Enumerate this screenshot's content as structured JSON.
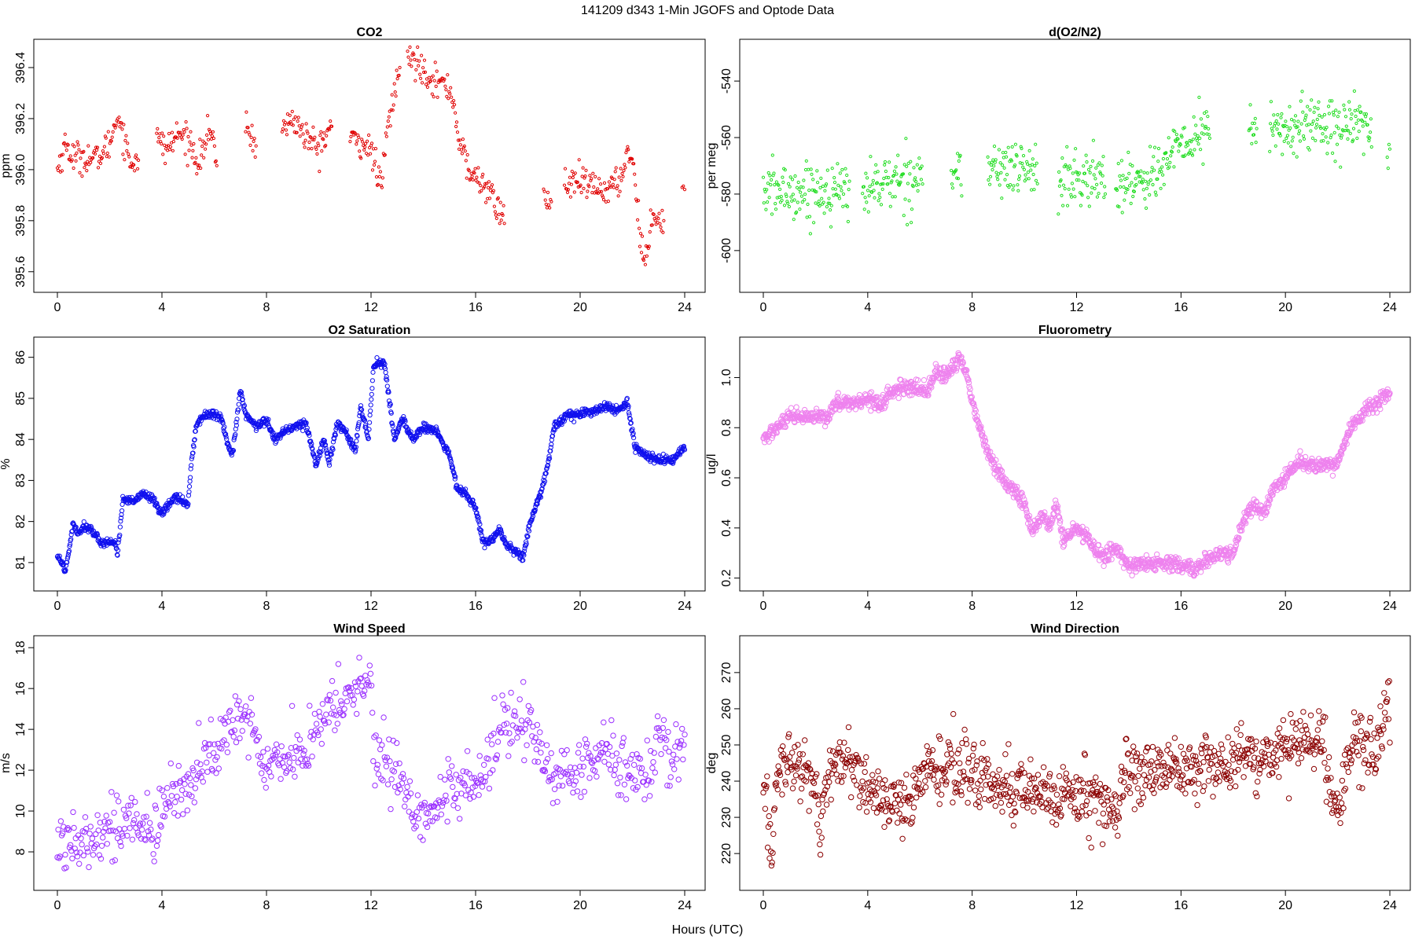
{
  "figure_title": "141209   d343   1-Min  JGOFS and Optode Data",
  "shared_xlabel": "Hours (UTC)",
  "chart_data": [
    {
      "type": "scatter",
      "title": "CO2",
      "ylabel": "ppm",
      "xlabel": "",
      "xlim": [
        0,
        24
      ],
      "ylim": [
        395.55,
        396.48
      ],
      "xticks": [
        0,
        4,
        8,
        12,
        16,
        20,
        24
      ],
      "yticks": [
        395.6,
        395.8,
        396.0,
        396.2,
        396.4
      ],
      "ytick_labels": [
        "395.6",
        "395.8",
        "396.0",
        "396.2",
        "396.4"
      ],
      "color": "#e00000",
      "marker_radius": 1.6,
      "noise": 0.006,
      "segments": [
        [
          0,
          3.1
        ],
        [
          3.8,
          6.1
        ],
        [
          7.2,
          7.6
        ],
        [
          8.6,
          10.5
        ],
        [
          11.2,
          13.1
        ],
        [
          13.4,
          17.1
        ],
        [
          18.6,
          18.9
        ],
        [
          19.4,
          23.2
        ],
        [
          23.9,
          24
        ]
      ],
      "profile": [
        [
          0,
          396.0
        ],
        [
          0.3,
          396.1
        ],
        [
          0.6,
          396.05
        ],
        [
          1.0,
          396.05
        ],
        [
          1.5,
          396.04
        ],
        [
          2.0,
          396.1
        ],
        [
          2.3,
          396.22
        ],
        [
          2.5,
          396.15
        ],
        [
          2.8,
          396.02
        ],
        [
          3.1,
          396.06
        ],
        [
          3.8,
          396.12
        ],
        [
          4.2,
          396.08
        ],
        [
          4.6,
          396.14
        ],
        [
          5.0,
          396.12
        ],
        [
          5.4,
          396.03
        ],
        [
          5.8,
          396.15
        ],
        [
          6.1,
          396.05
        ],
        [
          7.2,
          396.17
        ],
        [
          7.6,
          396.1
        ],
        [
          8.6,
          396.15
        ],
        [
          9.0,
          396.2
        ],
        [
          9.5,
          396.13
        ],
        [
          10.0,
          396.08
        ],
        [
          10.5,
          396.18
        ],
        [
          11.2,
          396.12
        ],
        [
          11.8,
          396.1
        ],
        [
          12.1,
          396.05
        ],
        [
          12.4,
          395.92
        ],
        [
          12.6,
          396.15
        ],
        [
          13.1,
          396.4
        ],
        [
          13.4,
          396.44
        ],
        [
          13.8,
          396.42
        ],
        [
          14.3,
          396.36
        ],
        [
          14.8,
          396.33
        ],
        [
          15.1,
          396.3
        ],
        [
          15.4,
          396.1
        ],
        [
          15.8,
          395.98
        ],
        [
          16.4,
          395.94
        ],
        [
          16.8,
          395.85
        ],
        [
          17.1,
          395.82
        ],
        [
          18.6,
          395.89
        ],
        [
          18.9,
          395.87
        ],
        [
          19.4,
          395.94
        ],
        [
          20.0,
          395.95
        ],
        [
          20.5,
          395.93
        ],
        [
          21.0,
          395.92
        ],
        [
          21.5,
          395.95
        ],
        [
          21.8,
          396.07
        ],
        [
          22.0,
          396.05
        ],
        [
          22.3,
          395.75
        ],
        [
          22.5,
          395.62
        ],
        [
          22.8,
          395.85
        ],
        [
          23.2,
          395.78
        ],
        [
          23.9,
          395.94
        ],
        [
          24,
          395.94
        ]
      ],
      "spread": 0.03,
      "n": 600
    },
    {
      "type": "scatter",
      "title": "d(O2/N2)",
      "ylabel": "per meg",
      "xlabel": "",
      "xlim": [
        0,
        24
      ],
      "ylim": [
        -612,
        -528
      ],
      "xticks": [
        0,
        4,
        8,
        12,
        16,
        20,
        24
      ],
      "yticks": [
        -600,
        -580,
        -560,
        -540
      ],
      "ytick_labels": [
        "-600",
        "-580",
        "-560",
        "-540"
      ],
      "color": "#22dd22",
      "marker_radius": 1.6,
      "noise": 0.0,
      "segments": [
        [
          0,
          3.3
        ],
        [
          3.8,
          6.1
        ],
        [
          7.2,
          7.6
        ],
        [
          8.6,
          10.5
        ],
        [
          11.3,
          13.1
        ],
        [
          13.5,
          17.1
        ],
        [
          18.6,
          18.9
        ],
        [
          19.4,
          23.3
        ],
        [
          23.9,
          24
        ]
      ],
      "profile": [
        [
          0,
          -579
        ],
        [
          3.3,
          -579
        ],
        [
          3.8,
          -578
        ],
        [
          6.1,
          -573
        ],
        [
          7.4,
          -573
        ],
        [
          8.6,
          -571
        ],
        [
          10.5,
          -571
        ],
        [
          11.3,
          -576
        ],
        [
          13.1,
          -574
        ],
        [
          13.5,
          -577
        ],
        [
          15.0,
          -573
        ],
        [
          16.0,
          -563
        ],
        [
          17.1,
          -557
        ],
        [
          18.6,
          -556
        ],
        [
          20.0,
          -558
        ],
        [
          21.0,
          -555
        ],
        [
          22.0,
          -555
        ],
        [
          23.3,
          -557
        ],
        [
          24,
          -565
        ]
      ],
      "spread": 5,
      "n": 700
    },
    {
      "type": "scatter",
      "title": "O2 Saturation",
      "ylabel": "%",
      "xlabel": "",
      "xlim": [
        0,
        24
      ],
      "ylim": [
        80.5,
        86.3
      ],
      "xticks": [
        0,
        4,
        8,
        12,
        16,
        20,
        24
      ],
      "yticks": [
        81,
        82,
        83,
        84,
        85,
        86
      ],
      "ytick_labels": [
        "81",
        "82",
        "83",
        "84",
        "85",
        "86"
      ],
      "color": "#1010ee",
      "marker_radius": 2.6,
      "noise": 0.04,
      "segments": [
        [
          0,
          24
        ]
      ],
      "profile": [
        [
          0,
          81.2
        ],
        [
          0.3,
          80.8
        ],
        [
          0.5,
          81.5
        ],
        [
          0.6,
          82.0
        ],
        [
          0.8,
          81.7
        ],
        [
          1.0,
          81.9
        ],
        [
          1.3,
          81.8
        ],
        [
          1.6,
          81.5
        ],
        [
          2.2,
          81.5
        ],
        [
          2.3,
          81.2
        ],
        [
          2.5,
          82.5
        ],
        [
          3.0,
          82.5
        ],
        [
          3.3,
          82.7
        ],
        [
          3.7,
          82.5
        ],
        [
          4.0,
          82.2
        ],
        [
          4.5,
          82.6
        ],
        [
          5.0,
          82.4
        ],
        [
          5.1,
          83.3
        ],
        [
          5.3,
          84.3
        ],
        [
          5.6,
          84.6
        ],
        [
          6.0,
          84.6
        ],
        [
          6.3,
          84.5
        ],
        [
          6.5,
          83.9
        ],
        [
          6.7,
          83.6
        ],
        [
          7.0,
          85.2
        ],
        [
          7.2,
          84.6
        ],
        [
          7.6,
          84.3
        ],
        [
          8.0,
          84.5
        ],
        [
          8.3,
          84.0
        ],
        [
          8.7,
          84.2
        ],
        [
          9.0,
          84.3
        ],
        [
          9.5,
          84.4
        ],
        [
          9.9,
          83.4
        ],
        [
          10.2,
          84.0
        ],
        [
          10.4,
          83.4
        ],
        [
          10.7,
          84.4
        ],
        [
          11.0,
          84.2
        ],
        [
          11.4,
          83.7
        ],
        [
          11.6,
          84.8
        ],
        [
          11.9,
          84.0
        ],
        [
          12.1,
          85.8
        ],
        [
          12.5,
          85.9
        ],
        [
          12.9,
          84.0
        ],
        [
          13.2,
          84.5
        ],
        [
          13.6,
          84.0
        ],
        [
          14.0,
          84.3
        ],
        [
          14.5,
          84.2
        ],
        [
          15.0,
          83.6
        ],
        [
          15.3,
          82.8
        ],
        [
          15.6,
          82.7
        ],
        [
          16.0,
          82.3
        ],
        [
          16.3,
          81.5
        ],
        [
          16.6,
          81.5
        ],
        [
          16.9,
          81.8
        ],
        [
          17.2,
          81.4
        ],
        [
          17.5,
          81.3
        ],
        [
          17.8,
          81.1
        ],
        [
          18.1,
          82.0
        ],
        [
          18.5,
          82.7
        ],
        [
          18.8,
          83.5
        ],
        [
          19.0,
          84.3
        ],
        [
          19.5,
          84.6
        ],
        [
          20.0,
          84.6
        ],
        [
          20.5,
          84.7
        ],
        [
          21.0,
          84.8
        ],
        [
          21.5,
          84.7
        ],
        [
          21.8,
          84.9
        ],
        [
          22.1,
          83.8
        ],
        [
          22.5,
          83.6
        ],
        [
          23.0,
          83.5
        ],
        [
          23.5,
          83.5
        ],
        [
          24.0,
          83.8
        ]
      ],
      "spread": 0.05,
      "n": 1440
    },
    {
      "type": "scatter",
      "title": "Fluorometry",
      "ylabel": "ug/l",
      "xlabel": "",
      "xlim": [
        0,
        24
      ],
      "ylim": [
        0.18,
        1.13
      ],
      "xticks": [
        0,
        4,
        8,
        12,
        16,
        20,
        24
      ],
      "yticks": [
        0.2,
        0.4,
        0.6,
        0.8,
        1.0
      ],
      "ytick_labels": [
        "0.2",
        "0.4",
        "0.6",
        "0.8",
        "1.0"
      ],
      "color": "#ee82ee",
      "marker_radius": 3.2,
      "noise": 0.008,
      "segments": [
        [
          0,
          24
        ]
      ],
      "profile": [
        [
          0,
          0.75
        ],
        [
          0.5,
          0.8
        ],
        [
          1.0,
          0.84
        ],
        [
          2.5,
          0.84
        ],
        [
          2.7,
          0.9
        ],
        [
          3.5,
          0.9
        ],
        [
          4.2,
          0.92
        ],
        [
          4.5,
          0.88
        ],
        [
          4.8,
          0.94
        ],
        [
          5.5,
          0.96
        ],
        [
          6.3,
          0.95
        ],
        [
          6.6,
          1.02
        ],
        [
          7.0,
          1.0
        ],
        [
          7.5,
          1.08
        ],
        [
          7.8,
          1.02
        ],
        [
          8.0,
          0.9
        ],
        [
          8.3,
          0.8
        ],
        [
          8.6,
          0.7
        ],
        [
          9.0,
          0.62
        ],
        [
          9.5,
          0.56
        ],
        [
          10.0,
          0.5
        ],
        [
          10.3,
          0.38
        ],
        [
          10.7,
          0.45
        ],
        [
          11.0,
          0.4
        ],
        [
          11.2,
          0.5
        ],
        [
          11.5,
          0.35
        ],
        [
          12.0,
          0.4
        ],
        [
          12.5,
          0.35
        ],
        [
          13.0,
          0.28
        ],
        [
          13.5,
          0.32
        ],
        [
          14.0,
          0.25
        ],
        [
          15.0,
          0.26
        ],
        [
          16.0,
          0.25
        ],
        [
          16.5,
          0.23
        ],
        [
          17.0,
          0.28
        ],
        [
          18.0,
          0.3
        ],
        [
          18.3,
          0.4
        ],
        [
          18.6,
          0.48
        ],
        [
          19.2,
          0.46
        ],
        [
          19.5,
          0.55
        ],
        [
          20.0,
          0.6
        ],
        [
          20.5,
          0.66
        ],
        [
          21.0,
          0.65
        ],
        [
          21.5,
          0.65
        ],
        [
          22.0,
          0.66
        ],
        [
          22.5,
          0.8
        ],
        [
          23.0,
          0.86
        ],
        [
          23.5,
          0.9
        ],
        [
          24.0,
          0.94
        ]
      ],
      "spread": 0.015,
      "n": 1440
    },
    {
      "type": "scatter",
      "title": "Wind Speed",
      "ylabel": "m/s",
      "xlabel": "",
      "xlim": [
        0,
        24
      ],
      "ylim": [
        6.5,
        18.2
      ],
      "xticks": [
        0,
        4,
        8,
        12,
        16,
        20,
        24
      ],
      "yticks": [
        8,
        10,
        12,
        14,
        16,
        18
      ],
      "ytick_labels": [
        "8",
        "10",
        "12",
        "14",
        "16",
        "18"
      ],
      "color": "#9b30ff",
      "marker_radius": 3.2,
      "noise": 0.0,
      "segments": [
        [
          0,
          24
        ]
      ],
      "profile": [
        [
          0,
          8.3
        ],
        [
          1.0,
          8.9
        ],
        [
          2.0,
          9.1
        ],
        [
          3.0,
          9.5
        ],
        [
          3.7,
          8.6
        ],
        [
          4.0,
          10.0
        ],
        [
          5.0,
          11.5
        ],
        [
          6.0,
          13.0
        ],
        [
          7.0,
          14.5
        ],
        [
          7.5,
          14.0
        ],
        [
          7.8,
          12.5
        ],
        [
          8.5,
          12.5
        ],
        [
          9.5,
          13.0
        ],
        [
          10.5,
          15.0
        ],
        [
          11.5,
          16.0
        ],
        [
          12.0,
          16.6
        ],
        [
          12.1,
          12.5
        ],
        [
          12.5,
          12.5
        ],
        [
          13.0,
          12.0
        ],
        [
          13.5,
          10.0
        ],
        [
          14.0,
          10.0
        ],
        [
          15.0,
          10.5
        ],
        [
          16.0,
          11.5
        ],
        [
          16.5,
          12.5
        ],
        [
          17.0,
          14.0
        ],
        [
          17.5,
          14.3
        ],
        [
          18.0,
          14.0
        ],
        [
          18.5,
          13.0
        ],
        [
          19.0,
          11.5
        ],
        [
          20.0,
          12.0
        ],
        [
          20.5,
          12.5
        ],
        [
          21.0,
          13.0
        ],
        [
          21.5,
          12.0
        ],
        [
          22.0,
          12.5
        ],
        [
          22.5,
          11.0
        ],
        [
          23.0,
          14.0
        ],
        [
          23.5,
          12.5
        ],
        [
          24.0,
          13.5
        ]
      ],
      "spread": 0.75,
      "n": 720
    },
    {
      "type": "scatter",
      "title": "Wind Direction",
      "ylabel": "deg",
      "xlabel": "",
      "xlim": [
        0,
        24
      ],
      "ylim": [
        212,
        278
      ],
      "xticks": [
        0,
        4,
        8,
        12,
        16,
        20,
        24
      ],
      "yticks": [
        220,
        230,
        240,
        250,
        260,
        270
      ],
      "ytick_labels": [
        "220",
        "230",
        "240",
        "250",
        "260",
        "270"
      ],
      "color": "#8b0000",
      "marker_radius": 3.2,
      "noise": 0.0,
      "segments": [
        [
          0,
          24
        ]
      ],
      "profile": [
        [
          0,
          238
        ],
        [
          0.2,
          228
        ],
        [
          0.35,
          218
        ],
        [
          0.5,
          243
        ],
        [
          1.0,
          246
        ],
        [
          1.5,
          243
        ],
        [
          2.0,
          240
        ],
        [
          2.2,
          225
        ],
        [
          2.4,
          240
        ],
        [
          3.0,
          246
        ],
        [
          3.5,
          243
        ],
        [
          4.0,
          238
        ],
        [
          4.5,
          235
        ],
        [
          5.0,
          232
        ],
        [
          5.5,
          234
        ],
        [
          6.0,
          240
        ],
        [
          7.0,
          244
        ],
        [
          8.0,
          242
        ],
        [
          9.0,
          239
        ],
        [
          10.0,
          238
        ],
        [
          11.0,
          237
        ],
        [
          12.0,
          236
        ],
        [
          12.5,
          237
        ],
        [
          13.0,
          234
        ],
        [
          13.5,
          230
        ],
        [
          13.8,
          238
        ],
        [
          14.0,
          242
        ],
        [
          15.0,
          244
        ],
        [
          16.0,
          244
        ],
        [
          17.0,
          245
        ],
        [
          18.0,
          245
        ],
        [
          19.0,
          246
        ],
        [
          20.0,
          250
        ],
        [
          21.0,
          251
        ],
        [
          21.5,
          253
        ],
        [
          21.8,
          236
        ],
        [
          22.0,
          233
        ],
        [
          22.3,
          243
        ],
        [
          22.6,
          250
        ],
        [
          23.0,
          248
        ],
        [
          23.5,
          247
        ],
        [
          23.9,
          262
        ],
        [
          24.0,
          260
        ]
      ],
      "spread": 4.2,
      "n": 1000
    }
  ]
}
